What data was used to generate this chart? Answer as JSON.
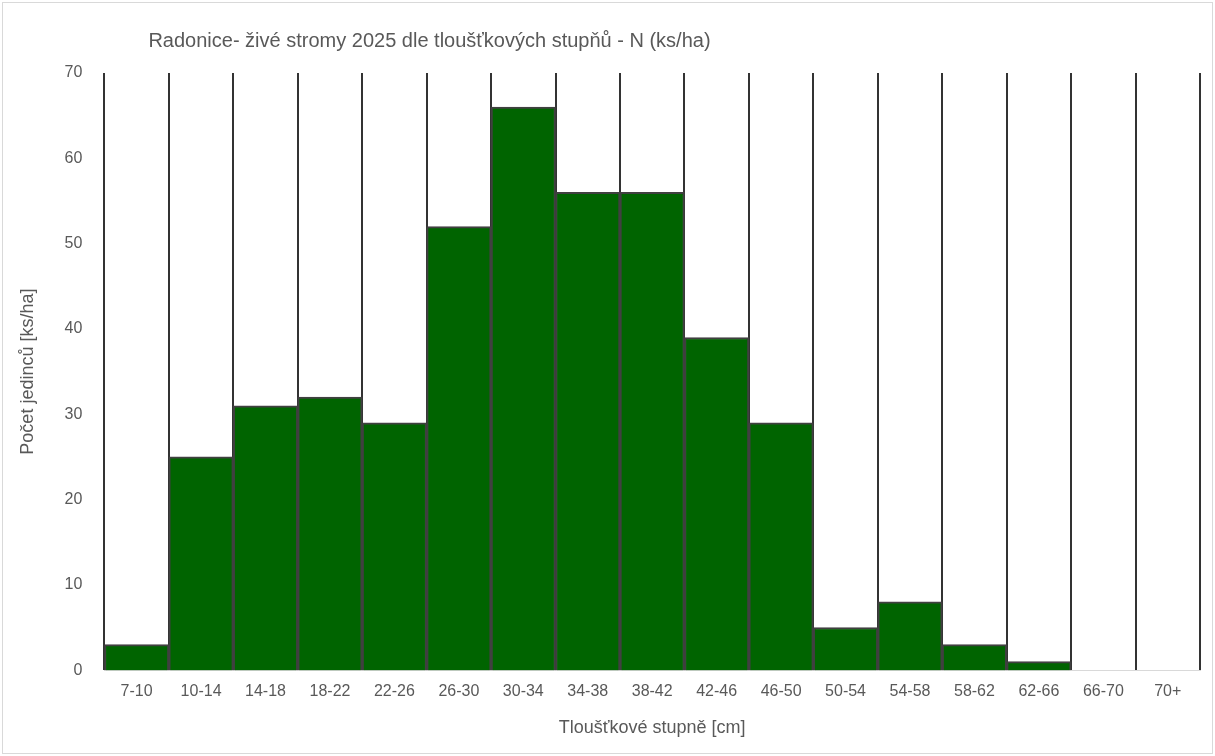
{
  "chart_data": {
    "type": "bar",
    "title": "Radonice- živé stromy 2025 dle tloušťkových stupňů - N (ks/ha)",
    "xlabel": "Tloušťkové stupně [cm]",
    "ylabel": "Počet jedinců [ks/ha]",
    "categories": [
      "7-10",
      "10-14",
      "14-18",
      "18-22",
      "22-26",
      "26-30",
      "30-34",
      "34-38",
      "38-42",
      "42-46",
      "46-50",
      "50-54",
      "54-58",
      "58-62",
      "62-66",
      "66-70",
      "70+"
    ],
    "values": [
      3,
      25,
      31,
      32,
      29,
      52,
      66,
      56,
      56,
      39,
      29,
      5,
      8,
      3,
      1,
      0,
      0
    ],
    "color": "#006400",
    "ylim": [
      0,
      70
    ],
    "yticks": [
      0,
      10,
      20,
      30,
      40,
      50,
      60,
      70
    ],
    "grid": "x"
  }
}
